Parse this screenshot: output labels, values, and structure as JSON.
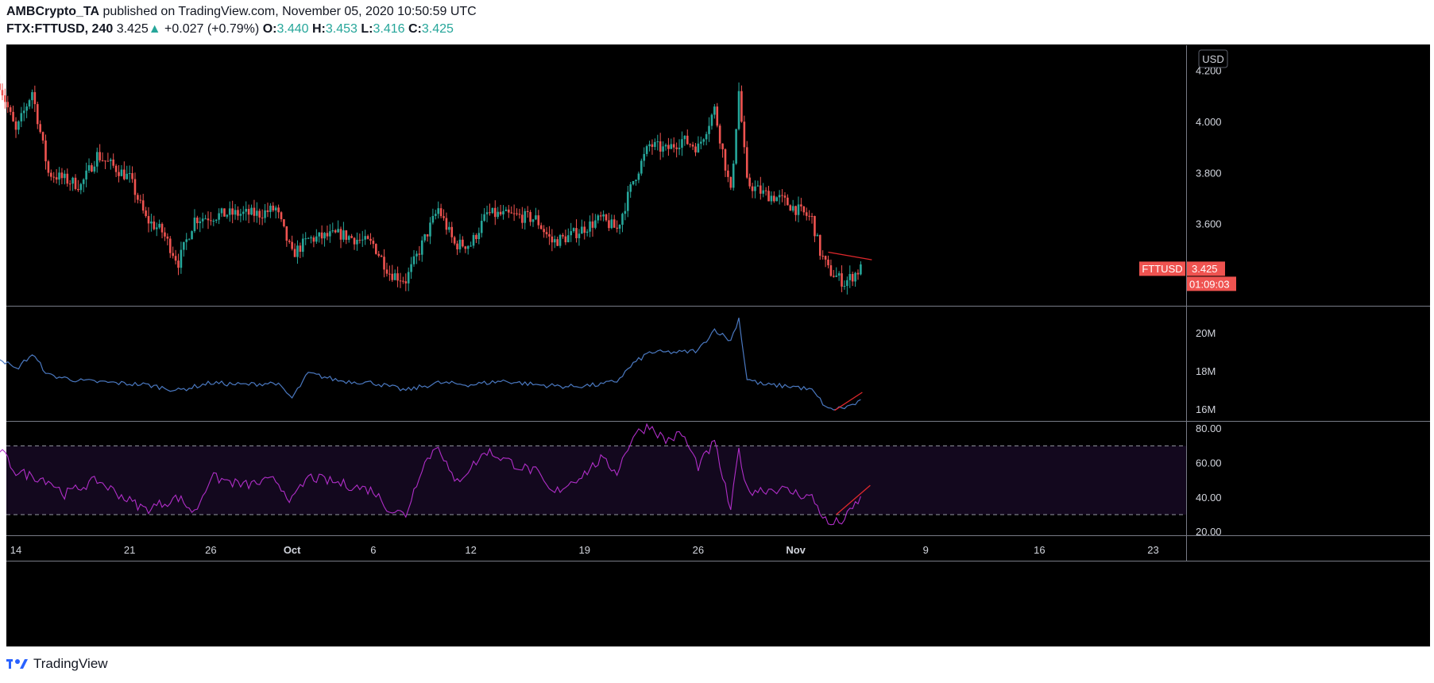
{
  "header": {
    "author": "AMBCrypto_TA",
    "published_text": "published on TradingView.com, November 05, 2020 10:50:59 UTC",
    "symbol": "FTX:FTTUSD, 240",
    "last": "3.425",
    "change": "+0.027 (+0.79%)",
    "o_label": "O:",
    "o_value": "3.440",
    "h_label": "H:",
    "h_value": "3.453",
    "l_label": "L:",
    "l_value": "3.416",
    "c_label": "C:",
    "c_value": "3.425"
  },
  "footer": {
    "brand": "TradingView"
  },
  "colors": {
    "bg": "#000000",
    "up": "#26a69a",
    "down": "#ef5350",
    "volume_line": "#4a78c0",
    "rsi_line": "#b02ec8",
    "rsi_band": "#13081e",
    "trendline": "#e0282c",
    "grid_text": "#d1d4dc",
    "label_bg": "#ef5350"
  },
  "chart_data": [
    {
      "type": "candlestick",
      "name": "FTTUSD",
      "y_axis_label": "USD",
      "ylim": [
        3.28,
        4.3
      ],
      "y_ticks": [
        "4.200",
        "4.000",
        "3.800",
        "3.600"
      ],
      "last_price_label": "FTTUSD",
      "last_price_value": "3.425",
      "countdown": "01:09:03",
      "x_ticks": [
        "14",
        "21",
        "26",
        "Oct",
        "6",
        "12",
        "19",
        "26",
        "Nov",
        "9",
        "16",
        "23"
      ],
      "close_path": [
        {
          "x": "Sep 13",
          "y": 4.15
        },
        {
          "x": "Sep 14",
          "y": 3.96
        },
        {
          "x": "Sep 15",
          "y": 4.12
        },
        {
          "x": "Sep 16",
          "y": 3.8
        },
        {
          "x": "Sep 18",
          "y": 3.75
        },
        {
          "x": "Sep 19",
          "y": 3.87
        },
        {
          "x": "Sep 21",
          "y": 3.78
        },
        {
          "x": "Sep 22",
          "y": 3.62
        },
        {
          "x": "Sep 23",
          "y": 3.57
        },
        {
          "x": "Sep 24",
          "y": 3.45
        },
        {
          "x": "Sep 25",
          "y": 3.62
        },
        {
          "x": "Sep 27",
          "y": 3.64
        },
        {
          "x": "Sep 29",
          "y": 3.64
        },
        {
          "x": "Sep 30",
          "y": 3.66
        },
        {
          "x": "Oct 1",
          "y": 3.48
        },
        {
          "x": "Oct 2",
          "y": 3.54
        },
        {
          "x": "Oct 4",
          "y": 3.56
        },
        {
          "x": "Oct 6",
          "y": 3.52
        },
        {
          "x": "Oct 7",
          "y": 3.41
        },
        {
          "x": "Oct 8",
          "y": 3.38
        },
        {
          "x": "Oct 9",
          "y": 3.52
        },
        {
          "x": "Oct 10",
          "y": 3.66
        },
        {
          "x": "Oct 11",
          "y": 3.52
        },
        {
          "x": "Oct 12",
          "y": 3.52
        },
        {
          "x": "Oct 13",
          "y": 3.64
        },
        {
          "x": "Oct 15",
          "y": 3.63
        },
        {
          "x": "Oct 16",
          "y": 3.62
        },
        {
          "x": "Oct 17",
          "y": 3.53
        },
        {
          "x": "Oct 18",
          "y": 3.55
        },
        {
          "x": "Oct 20",
          "y": 3.62
        },
        {
          "x": "Oct 21",
          "y": 3.58
        },
        {
          "x": "Oct 22",
          "y": 3.77
        },
        {
          "x": "Oct 23",
          "y": 3.91
        },
        {
          "x": "Oct 24",
          "y": 3.89
        },
        {
          "x": "Oct 25",
          "y": 3.93
        },
        {
          "x": "Oct 26",
          "y": 3.9
        },
        {
          "x": "Oct 27",
          "y": 4.05
        },
        {
          "x": "Oct 28",
          "y": 3.72
        },
        {
          "x": "Oct 28 12:00",
          "y": 4.12
        },
        {
          "x": "Oct 29",
          "y": 3.76
        },
        {
          "x": "Oct 30",
          "y": 3.72
        },
        {
          "x": "Oct 31",
          "y": 3.7
        },
        {
          "x": "Nov 1",
          "y": 3.66
        },
        {
          "x": "Nov 2",
          "y": 3.62
        },
        {
          "x": "Nov 2 12:00",
          "y": 3.49
        },
        {
          "x": "Nov 3",
          "y": 3.42
        },
        {
          "x": "Nov 4",
          "y": 3.37
        },
        {
          "x": "Nov 5",
          "y": 3.425
        }
      ]
    },
    {
      "type": "line",
      "name": "Volume-based indicator",
      "ylim": [
        15.4,
        21.4
      ],
      "y_ticks": [
        "20M",
        "18M",
        "16M"
      ],
      "series": [
        {
          "values": [
            {
              "x": "Sep 13",
              "y": 18.7
            },
            {
              "x": "Sep 14",
              "y": 18.1
            },
            {
              "x": "Sep 15",
              "y": 18.9
            },
            {
              "x": "Sep 16",
              "y": 17.8
            },
            {
              "x": "Sep 18",
              "y": 17.5
            },
            {
              "x": "Sep 20",
              "y": 17.4
            },
            {
              "x": "Sep 22",
              "y": 17.3
            },
            {
              "x": "Sep 24",
              "y": 17.0
            },
            {
              "x": "Sep 26",
              "y": 17.4
            },
            {
              "x": "Sep 28",
              "y": 17.3
            },
            {
              "x": "Sep 30",
              "y": 17.4
            },
            {
              "x": "Oct 1",
              "y": 16.6
            },
            {
              "x": "Oct 2",
              "y": 17.9
            },
            {
              "x": "Oct 4",
              "y": 17.5
            },
            {
              "x": "Oct 6",
              "y": 17.4
            },
            {
              "x": "Oct 8",
              "y": 17.0
            },
            {
              "x": "Oct 10",
              "y": 17.4
            },
            {
              "x": "Oct 12",
              "y": 17.3
            },
            {
              "x": "Oct 14",
              "y": 17.5
            },
            {
              "x": "Oct 16",
              "y": 17.3
            },
            {
              "x": "Oct 18",
              "y": 17.2
            },
            {
              "x": "Oct 20",
              "y": 17.3
            },
            {
              "x": "Oct 21",
              "y": 17.5
            },
            {
              "x": "Oct 22",
              "y": 18.4
            },
            {
              "x": "Oct 23",
              "y": 19.0
            },
            {
              "x": "Oct 25",
              "y": 19.0
            },
            {
              "x": "Oct 26",
              "y": 19.1
            },
            {
              "x": "Oct 27",
              "y": 20.2
            },
            {
              "x": "Oct 28",
              "y": 19.6
            },
            {
              "x": "Oct 28 12:00",
              "y": 20.8
            },
            {
              "x": "Oct 29",
              "y": 17.6
            },
            {
              "x": "Oct 30",
              "y": 17.3
            },
            {
              "x": "Nov 1",
              "y": 17.2
            },
            {
              "x": "Nov 2",
              "y": 17.0
            },
            {
              "x": "Nov 3",
              "y": 16.0
            },
            {
              "x": "Nov 4",
              "y": 16.1
            },
            {
              "x": "Nov 5",
              "y": 16.4
            }
          ]
        }
      ]
    },
    {
      "type": "line",
      "name": "RSI",
      "ylim": [
        18,
        84
      ],
      "y_ticks": [
        "80.00",
        "60.00",
        "40.00",
        "20.00"
      ],
      "bands": [
        30,
        70
      ],
      "series": [
        {
          "values": [
            {
              "x": "Sep 13",
              "y": 68
            },
            {
              "x": "Sep 14",
              "y": 55
            },
            {
              "x": "Sep 16",
              "y": 50
            },
            {
              "x": "Sep 17",
              "y": 42
            },
            {
              "x": "Sep 19",
              "y": 50
            },
            {
              "x": "Sep 21",
              "y": 38
            },
            {
              "x": "Sep 22",
              "y": 33
            },
            {
              "x": "Sep 24",
              "y": 40
            },
            {
              "x": "Sep 25",
              "y": 31
            },
            {
              "x": "Sep 26",
              "y": 52
            },
            {
              "x": "Sep 28",
              "y": 47
            },
            {
              "x": "Sep 30",
              "y": 50
            },
            {
              "x": "Oct 1",
              "y": 38
            },
            {
              "x": "Oct 2",
              "y": 52
            },
            {
              "x": "Oct 4",
              "y": 48
            },
            {
              "x": "Oct 6",
              "y": 44
            },
            {
              "x": "Oct 7",
              "y": 33
            },
            {
              "x": "Oct 8",
              "y": 30
            },
            {
              "x": "Oct 9",
              "y": 58
            },
            {
              "x": "Oct 10",
              "y": 71
            },
            {
              "x": "Oct 11",
              "y": 48
            },
            {
              "x": "Oct 13",
              "y": 67
            },
            {
              "x": "Oct 15",
              "y": 58
            },
            {
              "x": "Oct 16",
              "y": 55
            },
            {
              "x": "Oct 17",
              "y": 42
            },
            {
              "x": "Oct 19",
              "y": 54
            },
            {
              "x": "Oct 20",
              "y": 62
            },
            {
              "x": "Oct 21",
              "y": 55
            },
            {
              "x": "Oct 22",
              "y": 76
            },
            {
              "x": "Oct 23",
              "y": 82
            },
            {
              "x": "Oct 24",
              "y": 73
            },
            {
              "x": "Oct 25",
              "y": 77
            },
            {
              "x": "Oct 26",
              "y": 58
            },
            {
              "x": "Oct 27",
              "y": 72
            },
            {
              "x": "Oct 28",
              "y": 32
            },
            {
              "x": "Oct 28 12:00",
              "y": 68
            },
            {
              "x": "Oct 29",
              "y": 44
            },
            {
              "x": "Oct 31",
              "y": 45
            },
            {
              "x": "Nov 2",
              "y": 40
            },
            {
              "x": "Nov 3",
              "y": 24
            },
            {
              "x": "Nov 4",
              "y": 27
            },
            {
              "x": "Nov 5",
              "y": 40
            }
          ]
        }
      ]
    }
  ]
}
